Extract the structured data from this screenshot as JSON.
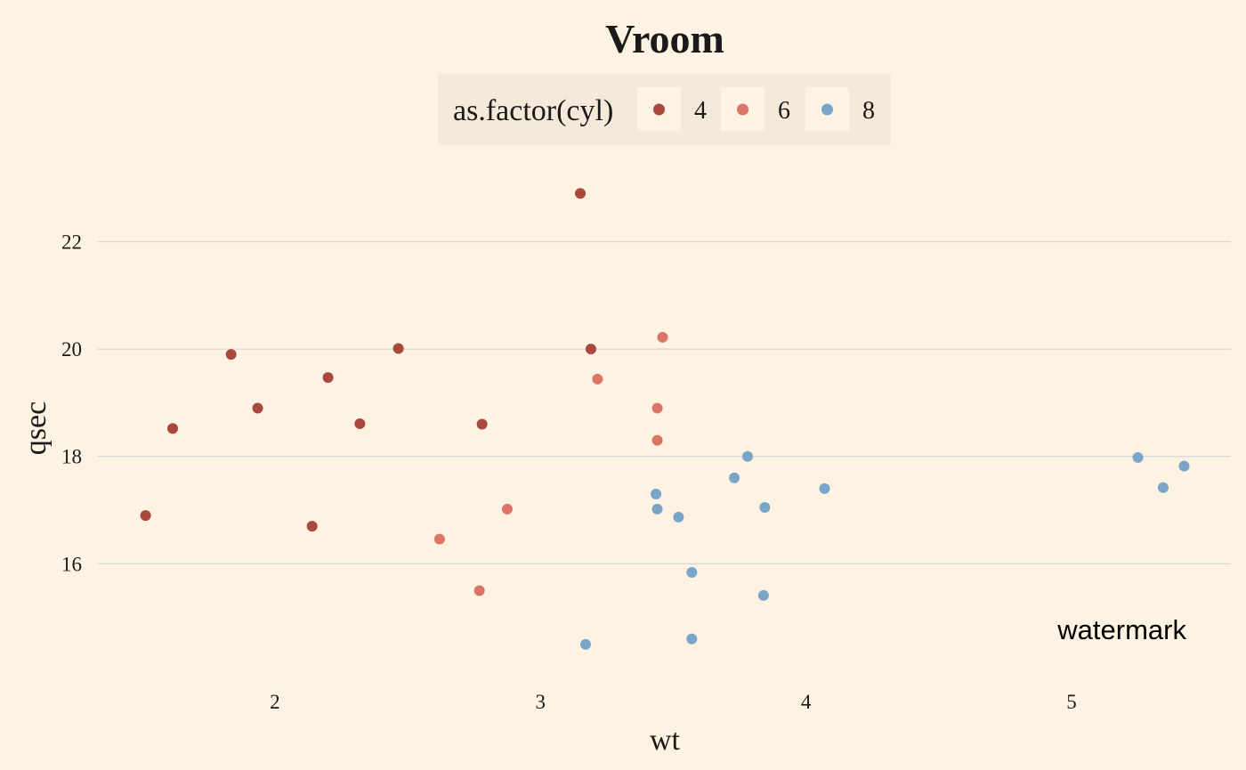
{
  "chart_data": {
    "type": "scatter",
    "title": "Vroom",
    "xlabel": "wt",
    "ylabel": "qsec",
    "xlim": [
      1.33,
      5.6
    ],
    "ylim": [
      13.9,
      23.6
    ],
    "x_ticks": [
      2,
      3,
      4,
      5
    ],
    "y_ticks": [
      16,
      18,
      20,
      22
    ],
    "grid": "horizontal",
    "legend": {
      "title": "as.factor(cyl)",
      "position": "top",
      "entries": [
        "4",
        "6",
        "8"
      ]
    },
    "series": [
      {
        "name": "4",
        "color": "#A9483D",
        "points": [
          {
            "x": 1.513,
            "y": 16.9
          },
          {
            "x": 1.615,
            "y": 18.52
          },
          {
            "x": 1.835,
            "y": 19.9
          },
          {
            "x": 1.935,
            "y": 18.9
          },
          {
            "x": 2.14,
            "y": 16.7
          },
          {
            "x": 2.2,
            "y": 19.47
          },
          {
            "x": 2.32,
            "y": 18.61
          },
          {
            "x": 2.465,
            "y": 20.01
          },
          {
            "x": 2.78,
            "y": 18.6
          },
          {
            "x": 3.15,
            "y": 22.9
          },
          {
            "x": 3.19,
            "y": 20.0
          }
        ]
      },
      {
        "name": "6",
        "color": "#DB7566",
        "points": [
          {
            "x": 2.62,
            "y": 16.46
          },
          {
            "x": 2.77,
            "y": 15.5
          },
          {
            "x": 2.875,
            "y": 17.02
          },
          {
            "x": 3.215,
            "y": 19.44
          },
          {
            "x": 3.44,
            "y": 18.3
          },
          {
            "x": 3.44,
            "y": 18.9
          },
          {
            "x": 3.46,
            "y": 20.22
          }
        ]
      },
      {
        "name": "8",
        "color": "#79A6C8",
        "points": [
          {
            "x": 3.17,
            "y": 14.5
          },
          {
            "x": 3.435,
            "y": 17.3
          },
          {
            "x": 3.44,
            "y": 17.02
          },
          {
            "x": 3.52,
            "y": 16.87
          },
          {
            "x": 3.57,
            "y": 15.84
          },
          {
            "x": 3.57,
            "y": 14.6
          },
          {
            "x": 3.73,
            "y": 17.6
          },
          {
            "x": 3.78,
            "y": 18.0
          },
          {
            "x": 3.84,
            "y": 15.41
          },
          {
            "x": 3.845,
            "y": 17.05
          },
          {
            "x": 4.07,
            "y": 17.4
          },
          {
            "x": 5.25,
            "y": 17.98
          },
          {
            "x": 5.345,
            "y": 17.42
          },
          {
            "x": 5.424,
            "y": 17.82
          }
        ]
      }
    ]
  },
  "watermark": "watermark",
  "colors": {
    "background": "#FEF2E2",
    "legend_background": "#F6E9DA",
    "legend_key_background": "#FDF2E4",
    "grid": "#D6D6D6"
  }
}
